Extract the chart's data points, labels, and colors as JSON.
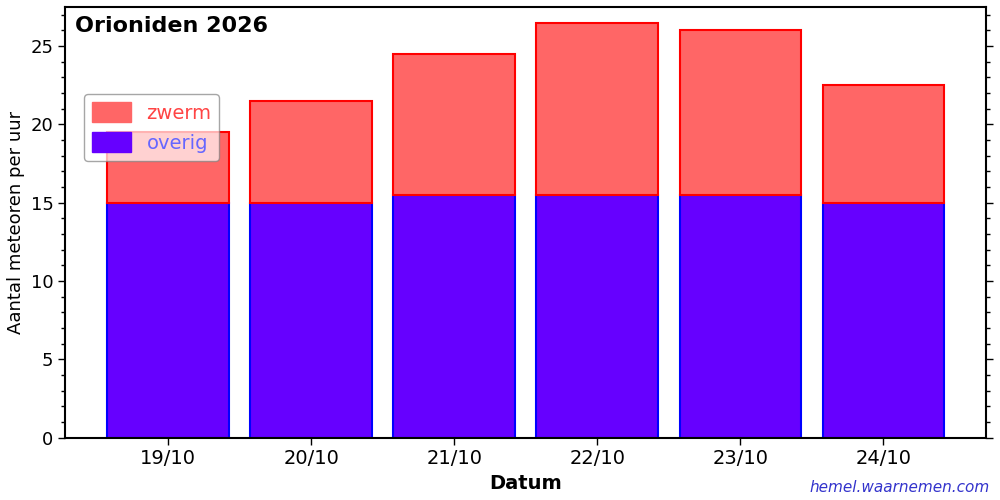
{
  "categories": [
    "19/10",
    "20/10",
    "21/10",
    "22/10",
    "23/10",
    "24/10"
  ],
  "overig": [
    15,
    15,
    15.5,
    15.5,
    15.5,
    15
  ],
  "totals": [
    19.5,
    21.5,
    24.5,
    26.5,
    26,
    22.5
  ],
  "color_overig": "#6600ff",
  "color_zwerm": "#ff6666",
  "edgecolor_overig": "#0000ff",
  "edgecolor_zwerm": "#ff0000",
  "title": "Orioniden 2026",
  "xlabel": "Datum",
  "ylabel": "Aantal meteoren per uur",
  "ylim": [
    0,
    27.5
  ],
  "yticks": [
    0,
    5,
    10,
    15,
    20,
    25
  ],
  "legend_labels": [
    "zwerm",
    "overig"
  ],
  "legend_text_color_zwerm": "#ff4444",
  "legend_text_color_overig": "#6666ff",
  "watermark": "hemel.waarnemen.com",
  "watermark_color": "#3333cc",
  "background_color": "#ffffff",
  "bar_width": 0.85
}
